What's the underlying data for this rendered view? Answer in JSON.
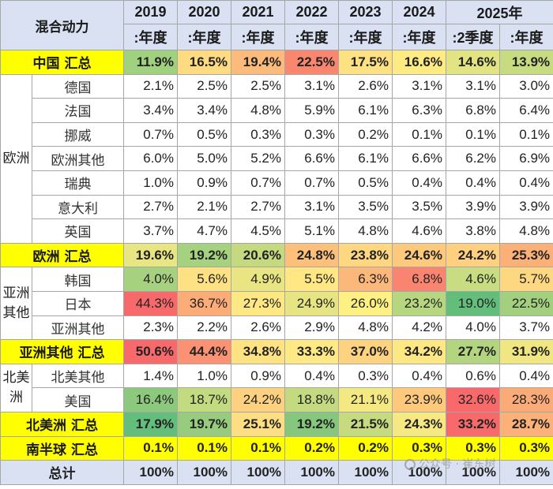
{
  "header": {
    "corner_label": "混合动力",
    "years": [
      "2019",
      "2020",
      "2021",
      "2022",
      "2023",
      "2024",
      "2025年"
    ],
    "periods": [
      ":年度",
      ":年度",
      ":年度",
      ":年度",
      ":年度",
      ":年度",
      ":2季度",
      ":年度"
    ]
  },
  "colors": {
    "header_bg": "#d9e1f2",
    "total_bg": "#ffff00",
    "high": "#f8696b",
    "mid": "#ffeb84",
    "low": "#63be7b"
  },
  "rows": [
    {
      "type": "total",
      "label": "中国 汇总",
      "values": [
        "11.9%",
        "16.5%",
        "19.4%",
        "22.5%",
        "17.5%",
        "16.6%",
        "14.6%",
        "13.9%"
      ],
      "colors": [
        "#9fd17e",
        "#fedb80",
        "#fcbb7a",
        "#f9876f",
        "#fee182",
        "#ffeb84",
        "#e2e383",
        "#c7db81"
      ]
    },
    {
      "type": "region",
      "label": "欧洲",
      "rowspan": 7
    },
    {
      "type": "country",
      "label": "德国",
      "values": [
        "2.1%",
        "2.5%",
        "2.5%",
        "3.1%",
        "2.6%",
        "3.1%",
        "3.1%",
        "3.0%"
      ]
    },
    {
      "type": "country",
      "label": "法国",
      "values": [
        "3.4%",
        "3.4%",
        "4.8%",
        "5.9%",
        "6.1%",
        "6.3%",
        "6.8%",
        "6.4%"
      ]
    },
    {
      "type": "country",
      "label": "挪威",
      "values": [
        "0.7%",
        "0.5%",
        "0.3%",
        "0.3%",
        "0.2%",
        "0.1%",
        "0.1%",
        "0.1%"
      ]
    },
    {
      "type": "country",
      "label": "欧洲其他",
      "values": [
        "6.0%",
        "5.0%",
        "5.2%",
        "6.6%",
        "6.1%",
        "6.6%",
        "6.2%",
        "6.9%"
      ]
    },
    {
      "type": "country",
      "label": "瑞典",
      "values": [
        "1.0%",
        "0.9%",
        "0.7%",
        "0.7%",
        "0.5%",
        "0.4%",
        "0.4%",
        "0.4%"
      ]
    },
    {
      "type": "country",
      "label": "意大利",
      "values": [
        "2.7%",
        "2.1%",
        "2.7%",
        "3.1%",
        "3.5%",
        "3.5%",
        "3.9%",
        "3.9%"
      ]
    },
    {
      "type": "country",
      "label": "英国",
      "values": [
        "3.7%",
        "4.7%",
        "4.5%",
        "5.1%",
        "4.8%",
        "4.6%",
        "3.8%",
        "4.8%"
      ]
    },
    {
      "type": "total",
      "label": "欧洲 汇总",
      "values": [
        "19.6%",
        "19.2%",
        "20.6%",
        "24.8%",
        "23.8%",
        "24.6%",
        "24.2%",
        "25.3%"
      ],
      "colors": [
        "#e8e583",
        "#a5d27f",
        "#c4d980",
        "#fcc07b",
        "#fed780",
        "#fdc97d",
        "#fed07f",
        "#fab077"
      ]
    },
    {
      "type": "region",
      "label": "亚洲其他",
      "rowspan": 3
    },
    {
      "type": "country",
      "label": "韩国",
      "values": [
        "4.0%",
        "5.6%",
        "4.9%",
        "5.5%",
        "6.3%",
        "6.8%",
        "4.6%",
        "5.7%"
      ],
      "colors": [
        "#a6d27f",
        "#fee182",
        "#e9e583",
        "#ffe883",
        "#fcb77a",
        "#f98570",
        "#c8dc81",
        "#fed881"
      ]
    },
    {
      "type": "country",
      "label": "日本",
      "values": [
        "44.3%",
        "36.7%",
        "27.3%",
        "24.9%",
        "26.0%",
        "23.2%",
        "19.0%",
        "22.5%"
      ],
      "colors": [
        "#f8696b",
        "#fbac77",
        "#fee883",
        "#e7e483",
        "#fff083",
        "#b7d680",
        "#63be7b",
        "#a2d07e"
      ]
    },
    {
      "type": "country",
      "label": "亚洲其他",
      "values": [
        "2.3%",
        "2.2%",
        "2.6%",
        "2.9%",
        "4.8%",
        "4.2%",
        "4.0%",
        "3.7%"
      ]
    },
    {
      "type": "total",
      "label": "亚洲其他 汇总",
      "values": [
        "50.6%",
        "44.4%",
        "34.8%",
        "33.3%",
        "37.0%",
        "34.2%",
        "27.7%",
        "31.9%"
      ],
      "colors": [
        "#f8696b",
        "#fa9273",
        "#ffe383",
        "#ffe984",
        "#fed380",
        "#fee883",
        "#b3d57f",
        "#f0e783"
      ]
    },
    {
      "type": "region",
      "label": "北美洲",
      "rowspan": 2
    },
    {
      "type": "country",
      "label": "北美其他",
      "values": [
        "1.4%",
        "1.0%",
        "0.9%",
        "0.4%",
        "0.3%",
        "0.4%",
        "0.6%",
        "0.4%"
      ]
    },
    {
      "type": "country",
      "label": "美国",
      "values": [
        "16.4%",
        "18.7%",
        "24.2%",
        "18.8%",
        "21.1%",
        "23.9%",
        "32.6%",
        "28.3%"
      ],
      "colors": [
        "#8dc97c",
        "#c2da80",
        "#fdd17f",
        "#c4da80",
        "#f4e883",
        "#fec97d",
        "#f8696b",
        "#fbab77"
      ]
    },
    {
      "type": "total",
      "label": "北美洲 汇总",
      "values": [
        "17.9%",
        "19.7%",
        "25.1%",
        "19.2%",
        "21.5%",
        "24.3%",
        "33.2%",
        "28.7%"
      ],
      "colors": [
        "#63be7b",
        "#97cc7e",
        "#fede82",
        "#85c77c",
        "#c6da80",
        "#f6e983",
        "#f8696b",
        "#fbb178"
      ]
    },
    {
      "type": "total",
      "label": "南半球 汇总",
      "values": [
        "0.1%",
        "0.1%",
        "0.1%",
        "0.2%",
        "0.2%",
        "0.3%",
        "0.3%",
        "0.3%"
      ]
    },
    {
      "type": "grand",
      "label": "总计",
      "values": [
        "100%",
        "100%",
        "100%",
        "100%",
        "100%",
        "100%",
        "100%",
        "100%"
      ]
    }
  ],
  "watermark": {
    "text": "公众号 · 崔东树"
  }
}
